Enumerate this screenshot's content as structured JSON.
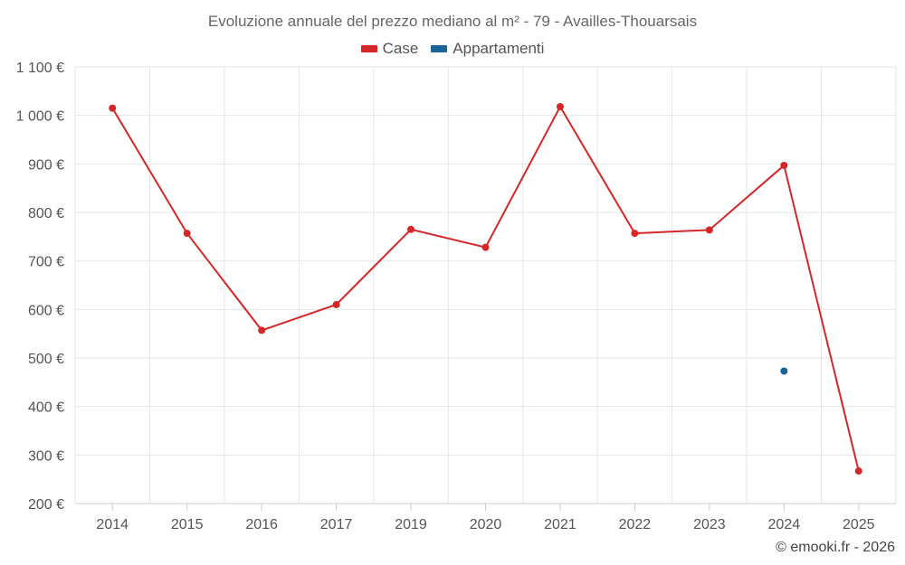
{
  "chart_data": {
    "type": "line",
    "title": "Evoluzione annuale del prezzo mediano al m² - 79 - Availles-Thouarsais",
    "categories": [
      "2014",
      "2015",
      "2016",
      "2017",
      "2019",
      "2020",
      "2021",
      "2022",
      "2023",
      "2024",
      "2025"
    ],
    "series": [
      {
        "name": "Case",
        "color": "#d62728",
        "values": [
          1015,
          757,
          557,
          610,
          765,
          728,
          1018,
          757,
          764,
          897,
          267
        ]
      },
      {
        "name": "Appartamenti",
        "color": "#1a6496",
        "values": [
          null,
          null,
          null,
          null,
          null,
          null,
          null,
          null,
          null,
          473,
          null
        ]
      }
    ],
    "y_ticks": [
      200,
      300,
      400,
      500,
      600,
      700,
      800,
      900,
      1000,
      1100
    ],
    "y_tick_labels": [
      "200 €",
      "300 €",
      "400 €",
      "500 €",
      "600 €",
      "700 €",
      "800 €",
      "900 €",
      "1 000 €",
      "1 100 €"
    ],
    "ylim": [
      200,
      1100
    ],
    "grid": true,
    "legend_position": "top-center",
    "credit": "© emooki.fr - 2026"
  }
}
